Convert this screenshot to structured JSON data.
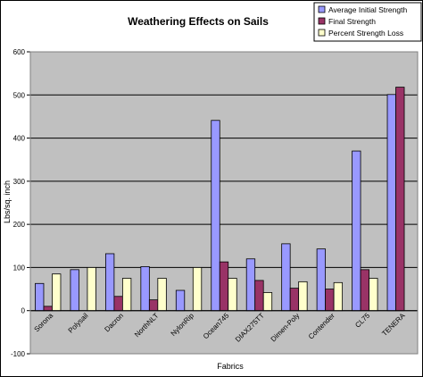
{
  "chart_data": {
    "type": "bar",
    "title": "Weathering Effects on Sails",
    "xlabel": "Fabrics",
    "ylabel": "Lbs/sq. inch",
    "ylim": [
      -100,
      600
    ],
    "yticks": [
      -100,
      0,
      100,
      200,
      300,
      400,
      500,
      600
    ],
    "grid": "horizontal",
    "legend_position": "top-right",
    "categories": [
      "Sorona",
      "Polysail",
      "Dacron",
      "NorthNLT",
      "NylonRip",
      "Ocean745",
      "DIAX275TT",
      "Dimen-Poly",
      "Contender",
      "CL75",
      "TENERA"
    ],
    "series": [
      {
        "name": "Average Initial Strength",
        "color": "#9999ff",
        "values": [
          63,
          95,
          132,
          102,
          47,
          441,
          120,
          155,
          143,
          370,
          501
        ]
      },
      {
        "name": "Final Strength",
        "color": "#993366",
        "values": [
          10,
          0,
          33,
          25,
          0,
          113,
          70,
          52,
          50,
          95,
          518
        ]
      },
      {
        "name": "Percent Strength Loss",
        "color": "#ffffcc",
        "values": [
          85,
          100,
          75,
          75,
          100,
          75,
          42,
          67,
          65,
          75,
          0
        ]
      }
    ]
  }
}
